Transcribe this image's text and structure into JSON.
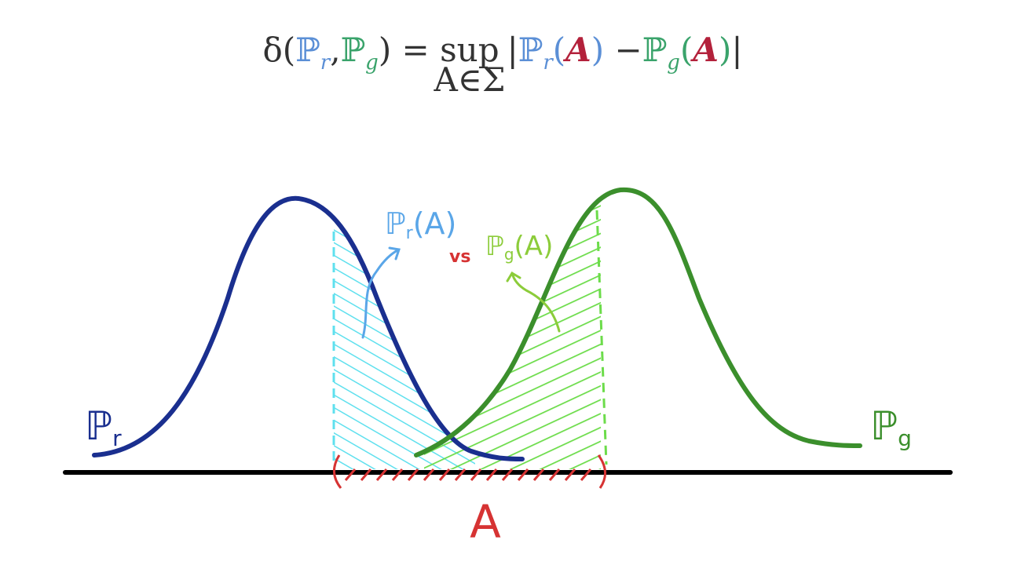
{
  "formula": {
    "parts": [
      "δ(",
      "ℙ",
      "r",
      ",",
      "ℙ",
      "g",
      ") = ",
      "sup",
      "|",
      "ℙ",
      "r",
      "(",
      "A",
      ")",
      " −",
      "ℙ",
      "g",
      "(",
      "A",
      ")",
      "|"
    ],
    "sup_under": "A∈Σ"
  },
  "labels": {
    "real": {
      "symbol": "ℙ",
      "sub": "r"
    },
    "generated": {
      "symbol": "ℙ",
      "sub": "g"
    },
    "real_of_a": {
      "symbol": "ℙ",
      "sub": "r",
      "arg": "(A)"
    },
    "vs": "vs",
    "generated_of_a": {
      "symbol": "ℙ",
      "sub": "g",
      "arg": "(A)"
    },
    "set": "A"
  }
}
